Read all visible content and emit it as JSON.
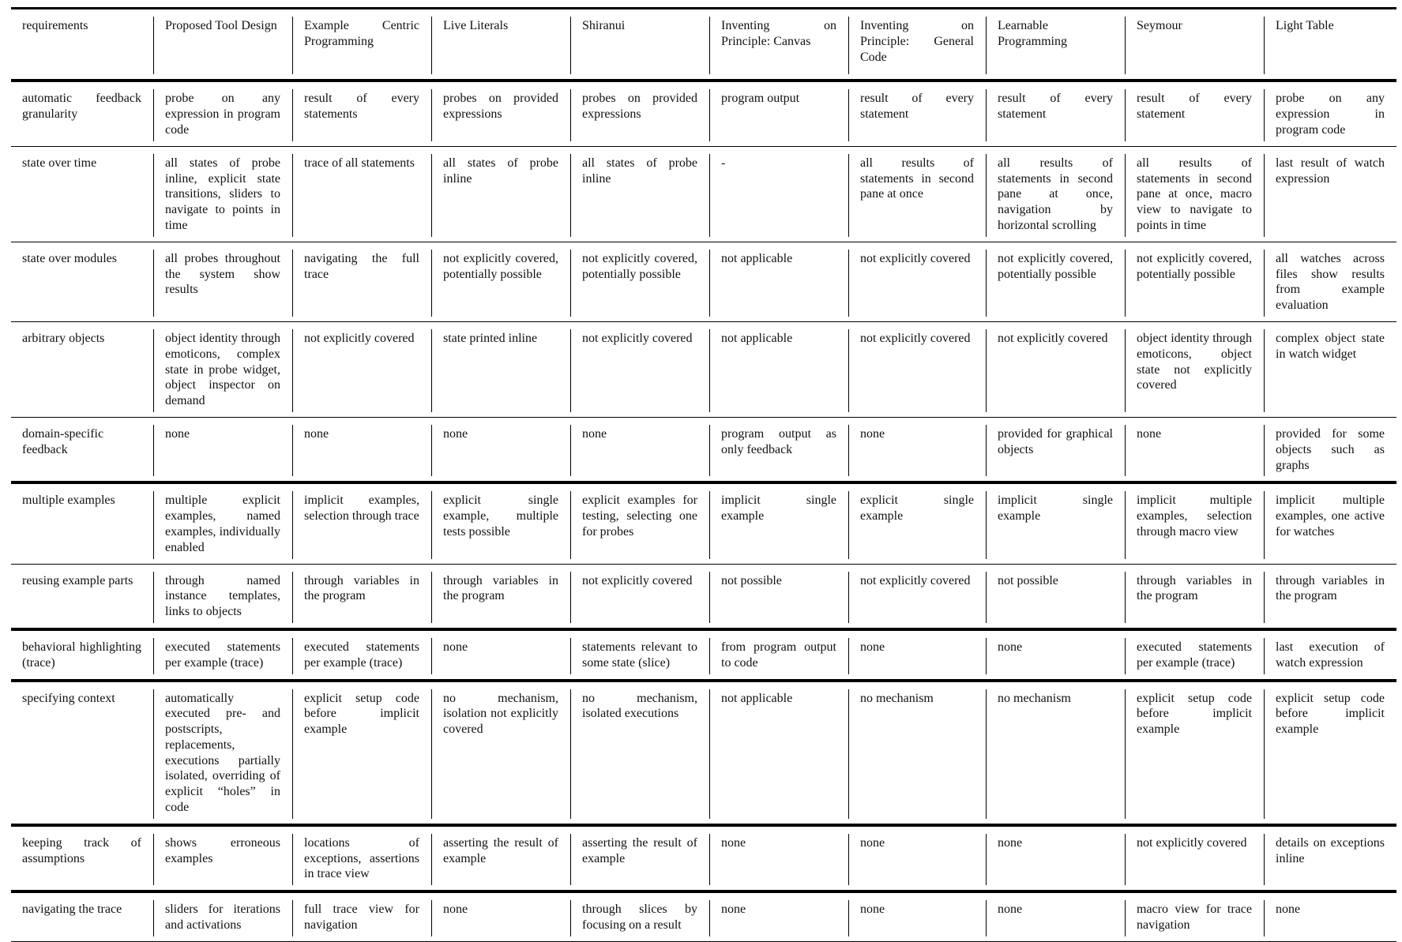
{
  "headers": [
    "requirements",
    "Proposed Tool Design",
    "Example Centric Programming",
    "Live Literals",
    "Shiranui",
    "Inventing on Principle: Canvas",
    "Inventing on Principle: General Code",
    "Learnable Programming",
    "Seymour",
    "Light Table"
  ],
  "rows": [
    {
      "requirement": "automatic feedback granularity",
      "thick": false,
      "cells": [
        "probe on any expression in program code",
        "result of every statements",
        "probes on provided expressions",
        "probes on provided expressions",
        "program output",
        "result of every statement",
        "result of every statement",
        "result of every statement",
        "probe on any expression in program code"
      ]
    },
    {
      "requirement": "state over time",
      "thick": false,
      "cells": [
        "all states of probe inline, explicit state transitions, sliders to navigate to points in time",
        "trace of all statements",
        "all states of probe inline",
        "all states of probe inline",
        "-",
        "all results of statements in second pane at once",
        "all results of statements in second pane at once, navigation by horizontal scrolling",
        "all results of statements in second pane at once, macro view to navigate to points in time",
        "last result of watch expression"
      ]
    },
    {
      "requirement": "state over modules",
      "thick": false,
      "cells": [
        "all probes throughout the system show results",
        "navigating the full trace",
        "not explicitly covered, potentially possible",
        "not explicitly covered, potentially possible",
        "not applicable",
        "not explicitly covered",
        "not explicitly covered, potentially possible",
        "not explicitly covered, potentially possible",
        "all watches across files show results from example evaluation"
      ]
    },
    {
      "requirement": "arbitrary objects",
      "thick": false,
      "cells": [
        "object identity through emoticons, complex state in probe widget, object inspector on demand",
        "not explicitly covered",
        "state printed inline",
        "not explicitly covered",
        "not applicable",
        "not explicitly covered",
        "not explicitly covered",
        "object identity through emoticons, object state not explicitly covered",
        "complex object state in watch widget"
      ]
    },
    {
      "requirement": "domain-specific feedback",
      "thick": true,
      "cells": [
        "none",
        "none",
        "none",
        "none",
        "program output as only feedback",
        "none",
        "provided for graphical objects",
        "none",
        "provided for some objects such as graphs"
      ]
    },
    {
      "requirement": "multiple examples",
      "thick": false,
      "cells": [
        "multiple explicit examples, named examples, individually enabled",
        "implicit examples, selection through trace",
        "explicit single example, multiple tests possible",
        "explicit examples for testing, selecting one for probes",
        "implicit single example",
        "explicit single example",
        "implicit single example",
        "implicit multiple examples, selection through macro view",
        "implicit multiple examples, one active for watches"
      ]
    },
    {
      "requirement": "reusing example parts",
      "thick": true,
      "cells": [
        "through named instance templates, links to objects",
        "through variables in the program",
        "through variables in the program",
        "not explicitly covered",
        "not possible",
        "not explicitly covered",
        "not possible",
        "through variables in the program",
        "through variables in the program"
      ]
    },
    {
      "requirement": "behavioral highlighting (trace)",
      "thick": true,
      "cells": [
        "executed statements per example (trace)",
        "executed statements per example (trace)",
        "none",
        "statements relevant to some state (slice)",
        "from program output to code",
        "none",
        "none",
        "executed statements per example (trace)",
        "last execution of watch expression"
      ]
    },
    {
      "requirement": "specifying context",
      "thick": true,
      "cells": [
        "automatically executed pre- and postscripts, replacements, executions partially isolated, overriding of explicit “holes” in code",
        "explicit setup code before implicit example",
        "no mechanism, isolation not explicitly covered",
        "no mechanism, isolated executions",
        "not applicable",
        "no mechanism",
        "no mechanism",
        "explicit setup code before implicit example",
        "explicit setup code before implicit example"
      ]
    },
    {
      "requirement": "keeping track of assumptions",
      "thick": true,
      "cells": [
        "shows erroneous examples",
        "locations of exceptions, assertions in trace view",
        "asserting the result of example",
        "asserting the result of example",
        "none",
        "none",
        "none",
        "not explicitly covered",
        "details on exceptions inline"
      ]
    },
    {
      "requirement": "navigating the trace",
      "thick": false,
      "cells": [
        "sliders for iterations and activations",
        "full trace view for navigation",
        "none",
        "through slices by focusing on a result",
        "none",
        "none",
        "none",
        "macro view for trace navigation",
        "none"
      ]
    }
  ]
}
